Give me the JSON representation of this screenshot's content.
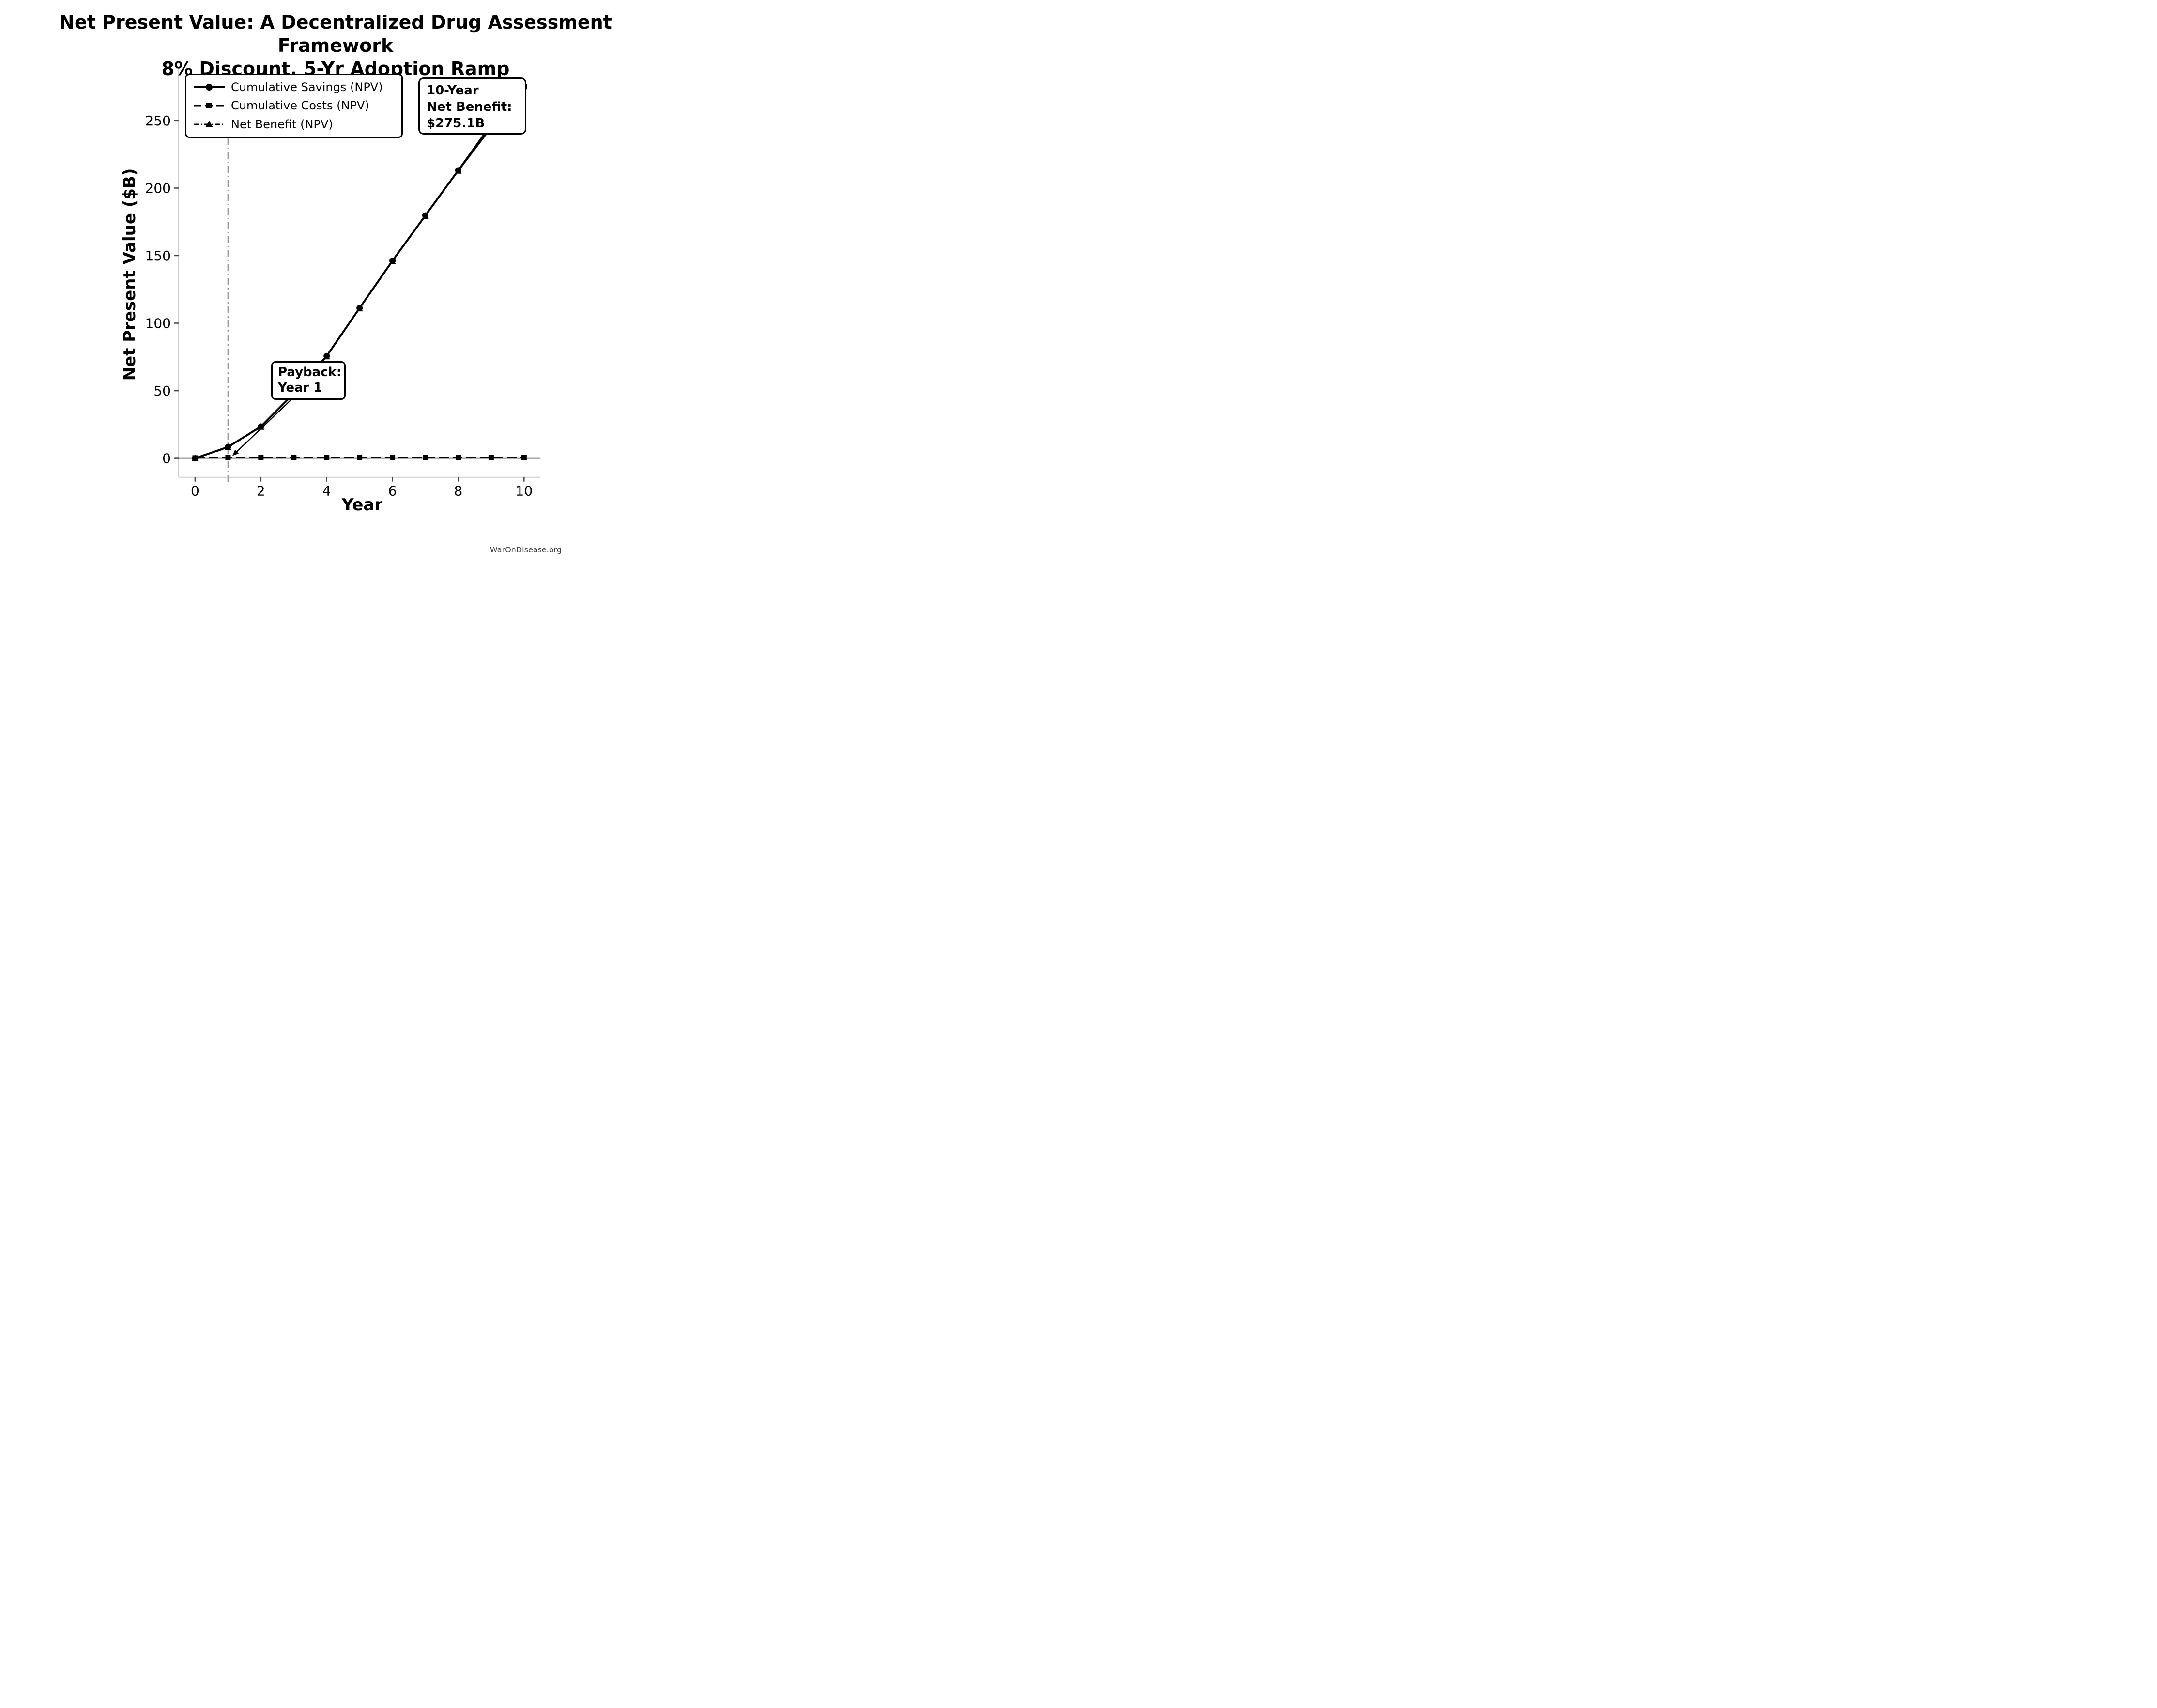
{
  "title": {
    "line1": "Net Present Value: A Decentralized Drug Assessment Framework",
    "line2": "8% Discount, 5-Yr Adoption Ramp"
  },
  "axes": {
    "xlabel": "Year",
    "ylabel": "Net Present Value ($B)"
  },
  "legend": {
    "items": [
      {
        "label": "Cumulative Savings (NPV)",
        "marker": "circle",
        "line": "solid"
      },
      {
        "label": "Cumulative Costs (NPV)",
        "marker": "square",
        "line": "dashed"
      },
      {
        "label": "Net Benefit (NPV)",
        "marker": "triangle",
        "line": "dashdot"
      }
    ]
  },
  "annotations": {
    "net_benefit": {
      "line1": "10-Year",
      "line2": "Net Benefit:",
      "line3": "$275.1B",
      "points_to": {
        "x": 7.55,
        "y": 198
      }
    },
    "payback": {
      "line1": "Payback:",
      "line2": "Year 1",
      "points_to": {
        "x": 1,
        "y": 0
      }
    },
    "payback_vline_x": 1
  },
  "watermark": "WarOnDisease.org",
  "colors": {
    "line": "#000000",
    "zero_line": "#7f7f7f",
    "vline": "#9a9a9a",
    "spine": "#cccccc",
    "tick": "#444444",
    "tick_label": "#000000",
    "watermark": "#3a3a3a",
    "annotation_bg": "#ffffff"
  },
  "chart_data": {
    "type": "line",
    "title": "Net Present Value: A Decentralized Drug Assessment Framework — 8% Discount, 5-Yr Adoption Ramp",
    "xlabel": "Year",
    "ylabel": "Net Present Value ($B)",
    "x": [
      0,
      1,
      2,
      3,
      4,
      5,
      6,
      7,
      8,
      9,
      10
    ],
    "series": [
      {
        "name": "Cumulative Savings (NPV)",
        "marker": "circle",
        "style": "solid",
        "values": [
          0,
          8.4,
          23.5,
          48.0,
          75.7,
          111.2,
          146.2,
          179.7,
          213.1,
          245.0,
          275.6
        ]
      },
      {
        "name": "Cumulative Costs (NPV)",
        "marker": "square",
        "style": "dashed",
        "values": [
          0.25,
          0.4,
          0.45,
          0.47,
          0.48,
          0.49,
          0.49,
          0.5,
          0.5,
          0.5,
          0.5
        ]
      },
      {
        "name": "Net Benefit (NPV)",
        "marker": "triangle",
        "style": "dashdot",
        "values": [
          -0.25,
          8.0,
          23.05,
          47.5,
          75.2,
          110.7,
          145.7,
          179.2,
          212.6,
          244.5,
          275.1
        ]
      }
    ],
    "xlim": [
      -0.5,
      10.5
    ],
    "ylim": [
      -14,
      289
    ],
    "x_ticks": [
      0,
      2,
      4,
      6,
      8,
      10
    ],
    "y_ticks": [
      0,
      50,
      100,
      150,
      200,
      250
    ],
    "grid": false,
    "legend_position": "upper-left",
    "ten_year_net_benefit": 275.1,
    "payback_year": 1
  }
}
